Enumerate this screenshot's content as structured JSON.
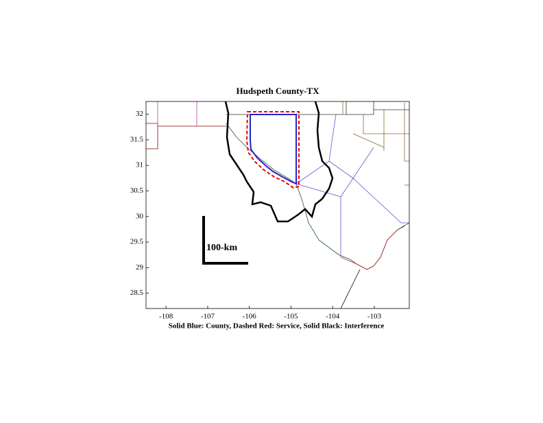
{
  "chart_data": {
    "type": "map",
    "title": "Hudspeth County-TX",
    "x_label": "Solid Blue: County, Dashed Red: Service, Solid Black: Interference",
    "scale_label": "100-km",
    "xlim": [
      -108.48,
      -102.16
    ],
    "xticks": [
      -108,
      -107,
      -106,
      -105,
      -104,
      -103
    ],
    "ylim": [
      28.2,
      32.25
    ],
    "yticks": [
      28.5,
      29,
      29.5,
      30,
      30.5,
      31,
      31.5,
      32
    ]
  }
}
